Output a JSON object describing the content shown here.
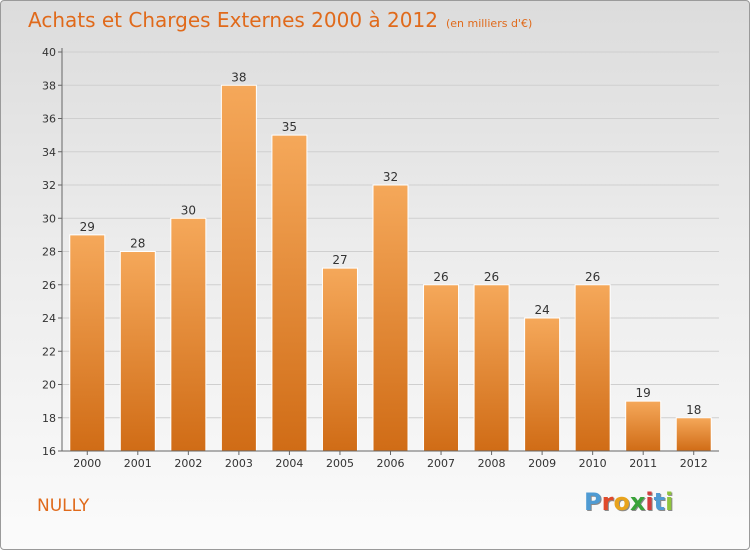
{
  "header": {
    "title": "Achats et Charges Externes 2000 à 2012",
    "unit": "(en milliers d'€)"
  },
  "footer": {
    "town": "NULLY",
    "logo_letters": [
      "P",
      "r",
      "o",
      "x",
      "i",
      "t",
      "i"
    ],
    "logo_colors": [
      "#4f9bd3",
      "#e04a2a",
      "#e8a31c",
      "#3aa33a",
      "#d33d3d",
      "#4f9bd3",
      "#8fc53c"
    ]
  },
  "colors": {
    "accent": "#e06a1b",
    "bar_top": "#f5a85a",
    "bar_bottom": "#d06c16",
    "bar_edge": "#ffffff"
  },
  "chart_data": {
    "type": "bar",
    "title": "Achats et Charges Externes 2000 à 2012",
    "subtitle": "(en milliers d'€)",
    "categories": [
      "2000",
      "2001",
      "2002",
      "2003",
      "2004",
      "2005",
      "2006",
      "2007",
      "2008",
      "2009",
      "2010",
      "2011",
      "2012"
    ],
    "values": [
      29,
      28,
      30,
      38,
      35,
      27,
      32,
      26,
      26,
      24,
      26,
      19,
      18
    ],
    "ylim": [
      16,
      40
    ],
    "yticks": [
      16,
      18,
      20,
      22,
      24,
      26,
      28,
      30,
      32,
      34,
      36,
      38,
      40
    ],
    "grid": true,
    "data_labels": true
  }
}
